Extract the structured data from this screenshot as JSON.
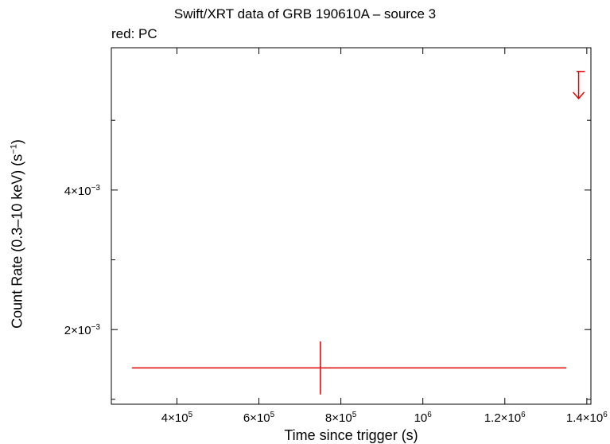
{
  "chart_data": {
    "type": "scatter",
    "title": "Swift/XRT data of GRB 190610A – source 3",
    "subtitle": "red: PC",
    "xlabel": "Time since trigger (s)",
    "ylabel_main": "Count Rate (0.3–10 keV) (s",
    "ylabel_sup": "−1",
    "ylabel_end": ")",
    "xlim": [
      240000,
      1410000
    ],
    "ylim": [
      0.00093,
      0.00604
    ],
    "x_ticks": [
      {
        "value": 400000,
        "mant": "4×10",
        "exp": "5"
      },
      {
        "value": 600000,
        "mant": "6×10",
        "exp": "5"
      },
      {
        "value": 800000,
        "mant": "8×10",
        "exp": "5"
      },
      {
        "value": 1000000,
        "mant": "10",
        "exp": "6"
      },
      {
        "value": 1200000,
        "mant": "1.2×10",
        "exp": "6"
      },
      {
        "value": 1400000,
        "mant": "1.4×10",
        "exp": "6"
      }
    ],
    "y_ticks": [
      {
        "value": 0.002,
        "mant": "2×10",
        "exp": "−3"
      },
      {
        "value": 0.004,
        "mant": "4×10",
        "exp": "−3"
      }
    ],
    "y_minor_ticks": [
      0.001,
      0.003,
      0.005
    ],
    "series": [
      {
        "color": "#e00000",
        "points": [
          {
            "x": 750000,
            "xerr_lo": 460000,
            "xerr_hi": 600000,
            "y": 0.00145,
            "yerr_lo": 0.00038,
            "yerr_hi": 0.00038
          }
        ],
        "upper_limits": [
          {
            "x": 1380000,
            "xerr_lo": 5000,
            "xerr_hi": 15000,
            "y": 0.0057
          }
        ]
      }
    ]
  }
}
